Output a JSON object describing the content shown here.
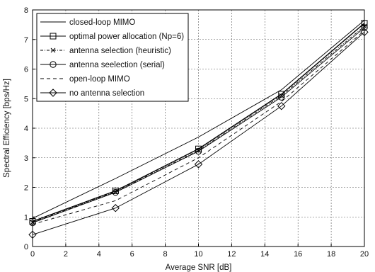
{
  "chart_data": {
    "type": "line",
    "xlabel": "Average SNR [dB]",
    "ylabel": "Spectral Efficiency [bps/Hz]",
    "xlim": [
      0,
      20
    ],
    "ylim": [
      0,
      8
    ],
    "xticks": [
      "0",
      "2",
      "4",
      "6",
      "8",
      "10",
      "12",
      "14",
      "16",
      "18",
      "20"
    ],
    "yticks": [
      "0",
      "1",
      "2",
      "3",
      "4",
      "5",
      "6",
      "7",
      "8"
    ],
    "grid": "dashed",
    "legend_position": "top-left",
    "x": [
      0,
      5,
      10,
      15,
      20
    ],
    "series": [
      {
        "name": "closed-loop MIMO",
        "values": [
          0.95,
          2.3,
          3.7,
          5.3,
          7.65
        ],
        "line": "solid",
        "marker": "none"
      },
      {
        "name": "optimal power allocation (Np=6)",
        "values": [
          0.85,
          1.88,
          3.3,
          5.15,
          7.55
        ],
        "line": "solid",
        "marker": "square"
      },
      {
        "name": "antenna selection (heuristic)",
        "values": [
          0.82,
          1.85,
          3.25,
          5.1,
          7.45
        ],
        "line": "dash-dot",
        "marker": "x"
      },
      {
        "name": "antenna seelection (serial)",
        "values": [
          0.8,
          1.83,
          3.22,
          5.05,
          7.4
        ],
        "line": "solid",
        "marker": "circle"
      },
      {
        "name": "open-loop MIMO",
        "values": [
          0.75,
          1.55,
          3.0,
          4.9,
          7.3
        ],
        "line": "dashed",
        "marker": "none"
      },
      {
        "name": "no antenna selection",
        "values": [
          0.4,
          1.3,
          2.78,
          4.75,
          7.25
        ],
        "line": "solid",
        "marker": "diamond"
      }
    ]
  }
}
